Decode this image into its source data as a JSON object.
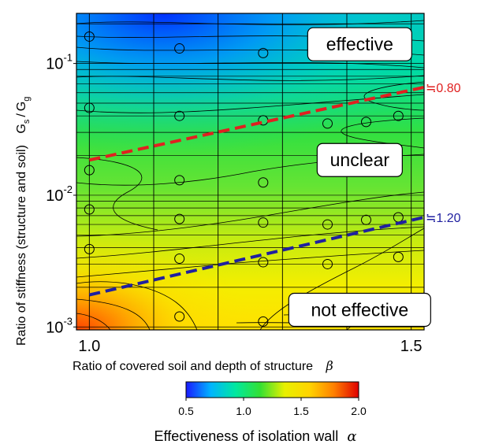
{
  "chart_data": {
    "type": "heatmap",
    "x_axis": {
      "label": "Ratio of covered soil and depth of structure",
      "symbol": "β",
      "range": [
        0.98,
        1.52
      ],
      "ticks": [
        {
          "value": 1.0,
          "label": "1.0"
        },
        {
          "value": 1.5,
          "label": "1.5"
        }
      ],
      "gridlines": [
        1.0,
        1.1,
        1.2,
        1.3,
        1.4,
        1.5
      ]
    },
    "y_axis": {
      "label": "Ratio of stiffness (structure and soil)",
      "symbol": "G",
      "symbol_sub_s": "s",
      "symbol_sub_g": "g",
      "scale": "log",
      "range": [
        0.00095,
        0.24
      ],
      "ticks": [
        {
          "value": 0.001,
          "base": "10",
          "exp": "-3"
        },
        {
          "value": 0.01,
          "base": "10",
          "exp": "-2"
        },
        {
          "value": 0.1,
          "base": "10",
          "exp": "-1"
        }
      ]
    },
    "colorbar": {
      "title": "Effectiveness of isolation wall",
      "symbol": "α",
      "range": [
        0.5,
        2.0
      ],
      "ticks": [
        {
          "value": 0.5,
          "label": "0.5"
        },
        {
          "value": 1.0,
          "label": "1.0"
        },
        {
          "value": 1.5,
          "label": "1.5"
        },
        {
          "value": 2.0,
          "label": "2.0"
        }
      ],
      "colors": [
        "#1a1aff",
        "#00b4ff",
        "#00e8a0",
        "#33e033",
        "#e8f000",
        "#ffd400",
        "#ff8000",
        "#e00000"
      ]
    },
    "zones": [
      {
        "label": "effective",
        "x": 1.42,
        "y": 0.14
      },
      {
        "label": "unclear",
        "x": 1.42,
        "y": 0.0185
      },
      {
        "label": "not effective",
        "x": 1.42,
        "y": 0.00135
      }
    ],
    "boundary_lines": [
      {
        "label": "≒0.80",
        "color": "#e02020",
        "x": [
          1.0,
          1.52
        ],
        "y": [
          0.0185,
          0.066
        ]
      },
      {
        "label": "≒1.20",
        "color": "#2020a0",
        "x": [
          1.0,
          1.52
        ],
        "y": [
          0.00175,
          0.0068
        ]
      }
    ],
    "sample_points": [
      {
        "x": 1.0,
        "y": 0.16
      },
      {
        "x": 1.0,
        "y": 0.046
      },
      {
        "x": 1.0,
        "y": 0.0155
      },
      {
        "x": 1.0,
        "y": 0.0078
      },
      {
        "x": 1.0,
        "y": 0.0039
      },
      {
        "x": 1.14,
        "y": 0.13
      },
      {
        "x": 1.14,
        "y": 0.04
      },
      {
        "x": 1.14,
        "y": 0.013
      },
      {
        "x": 1.14,
        "y": 0.0066
      },
      {
        "x": 1.14,
        "y": 0.0033
      },
      {
        "x": 1.14,
        "y": 0.0012
      },
      {
        "x": 1.27,
        "y": 0.12
      },
      {
        "x": 1.27,
        "y": 0.037
      },
      {
        "x": 1.27,
        "y": 0.0125
      },
      {
        "x": 1.27,
        "y": 0.0062
      },
      {
        "x": 1.27,
        "y": 0.0031
      },
      {
        "x": 1.27,
        "y": 0.0011
      },
      {
        "x": 1.37,
        "y": 0.035
      },
      {
        "x": 1.37,
        "y": 0.006
      },
      {
        "x": 1.37,
        "y": 0.003
      },
      {
        "x": 1.43,
        "y": 0.036
      },
      {
        "x": 1.43,
        "y": 0.0065
      },
      {
        "x": 1.48,
        "y": 0.04
      },
      {
        "x": 1.48,
        "y": 0.0068
      },
      {
        "x": 1.48,
        "y": 0.0034
      }
    ]
  }
}
